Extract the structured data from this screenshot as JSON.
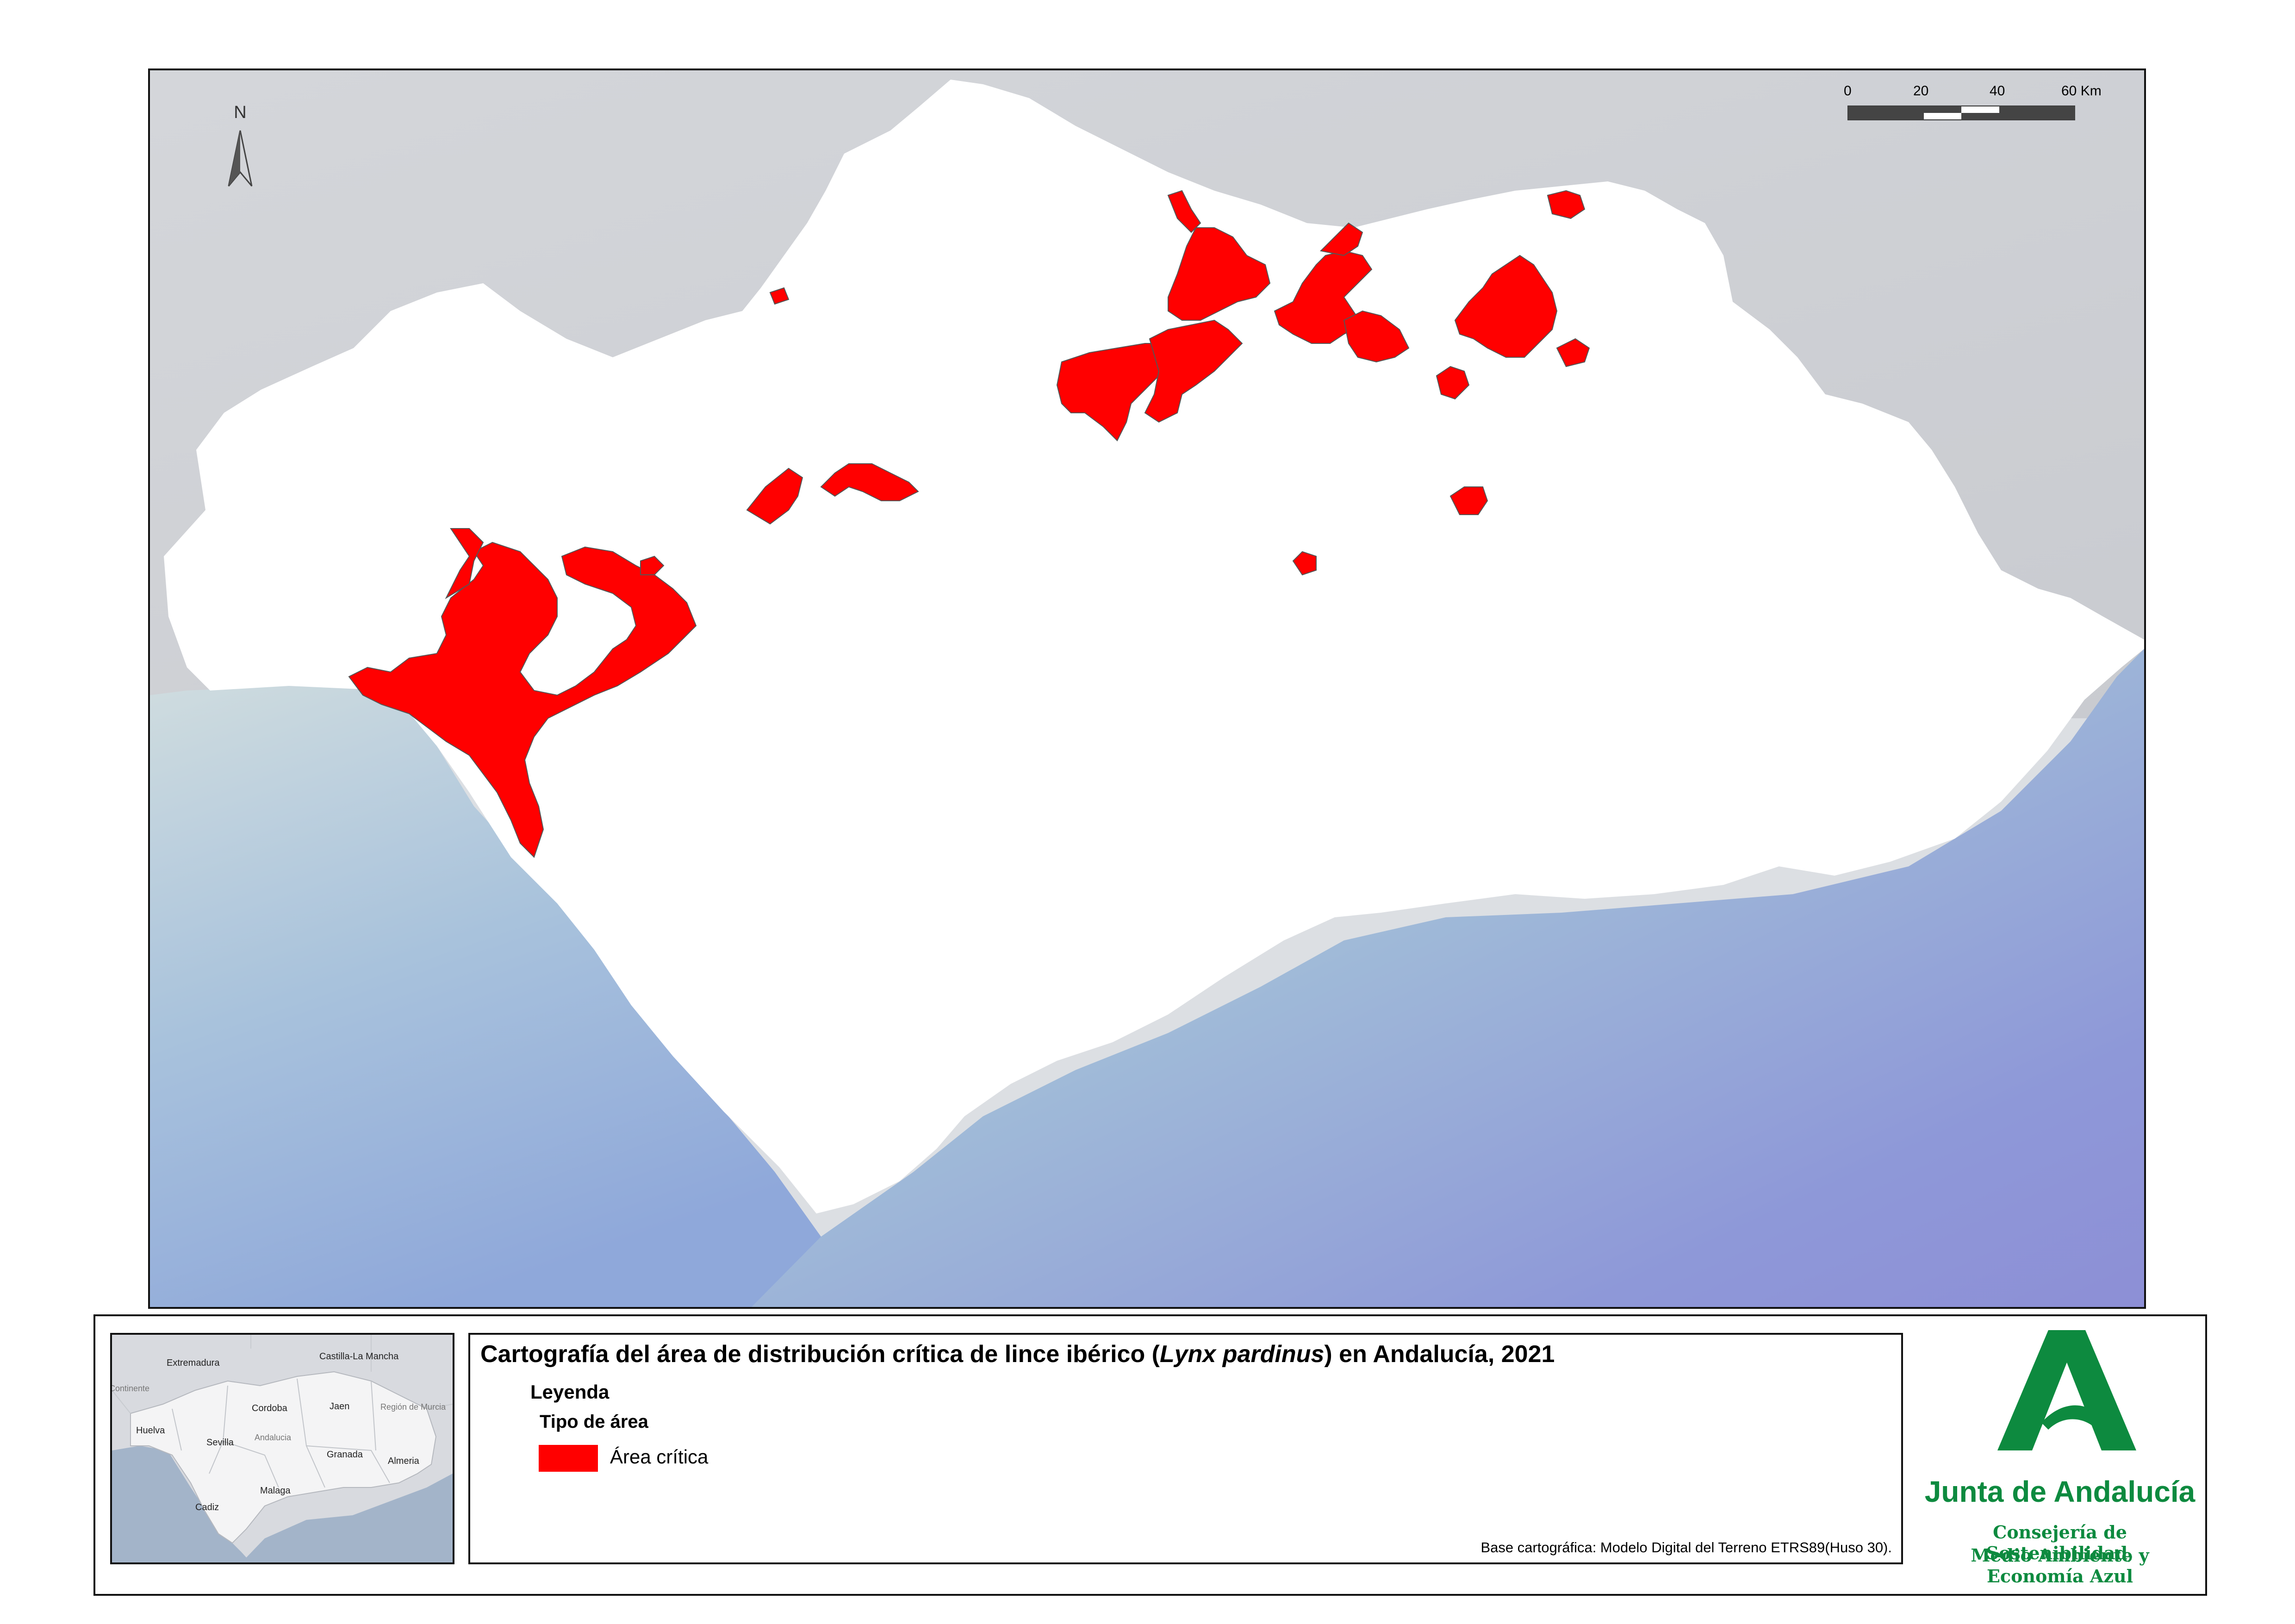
{
  "map": {
    "north_label": "N",
    "scale_labels": [
      "0",
      "20",
      "40",
      "60 Km"
    ],
    "colors": {
      "land_outside": "#d3d5d9",
      "andalucia": "#ffffff",
      "sea_shallow": "#c9d8dc",
      "sea_deep": "#8d93d6",
      "critical_area": "#ff0000"
    }
  },
  "title": {
    "prefix": "Cartografía del área de distribución crítica de lince ibérico (",
    "species": "Lynx pardinus",
    "suffix": ") en Andalucía, 2021"
  },
  "legend": {
    "title": "Leyenda",
    "subtitle": "Tipo de área",
    "items": [
      {
        "label": "Área crítica",
        "color": "#ff0000"
      }
    ]
  },
  "source_note": "Base cartográfica: Modelo Digital del Terreno ETRS89(Huso 30).",
  "locator": {
    "labels": {
      "extremadura": "Extremadura",
      "castilla": "Castilla-La Mancha",
      "continente": "Continente",
      "cordoba": "Cordoba",
      "jaen": "Jaen",
      "murcia": "Región de Murcia",
      "huelva": "Huelva",
      "sevilla": "Sevilla",
      "andalucia": "Andalucia",
      "granada": "Granada",
      "almeria": "Almeria",
      "malaga": "Malaga",
      "cadiz": "Cadiz"
    }
  },
  "logo": {
    "name": "Junta de Andalucía",
    "dept_line1": "Consejería de Sostenibilidad,",
    "dept_line2": "Medio Ambiente y Economía Azul",
    "color": "#0d8a3f"
  }
}
